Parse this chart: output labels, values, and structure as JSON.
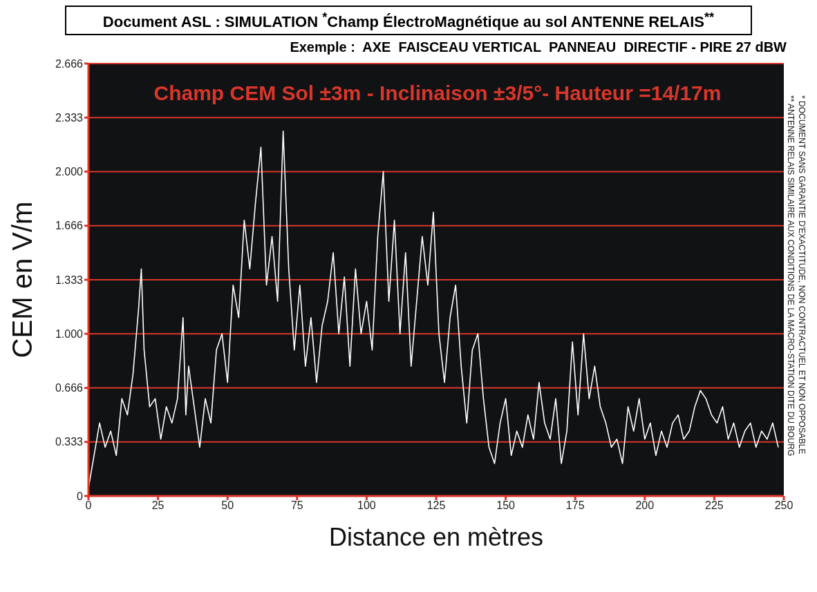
{
  "chart_data": {
    "type": "line",
    "title": "Document ASL : SIMULATION $^{*}$Champ  ÉlectroMagnétique au sol  ANTENNE RELAIS$^{**}$",
    "subtitle": "Exemple :  AXE  FAISCEAU VERTICAL  PANNEAU  DIRECTIF - PIRE 27 dBW",
    "xlabel": "Distance  en mètres",
    "ylabel": "CEM  en  V/m",
    "annotations": [
      "Champ CEM Sol ±3m - Inclinaison ±3/5°- Hauteur =14/17m",
      "*  DOCUMENT SANS GARANTIE D'EXACTITUDE, NON CONTRACTUEL ET NON OPPOSABLE",
      "** ANTENNE RELAIS SIMILAIRE AUX CONDITIONS DE LA MACRO-STATION  DITE DU BOURG"
    ],
    "x": [
      0,
      2,
      4,
      6,
      8,
      10,
      12,
      14,
      16,
      18,
      19,
      20,
      22,
      24,
      26,
      28,
      30,
      32,
      34,
      35,
      36,
      38,
      40,
      42,
      44,
      46,
      48,
      50,
      52,
      54,
      56,
      58,
      60,
      62,
      64,
      66,
      68,
      70,
      72,
      74,
      76,
      78,
      80,
      82,
      84,
      86,
      88,
      90,
      92,
      94,
      96,
      98,
      100,
      102,
      104,
      106,
      108,
      110,
      112,
      114,
      116,
      118,
      120,
      122,
      124,
      126,
      128,
      130,
      132,
      134,
      136,
      138,
      140,
      142,
      144,
      146,
      148,
      150,
      152,
      154,
      156,
      158,
      160,
      162,
      164,
      166,
      168,
      170,
      172,
      174,
      176,
      178,
      180,
      182,
      184,
      186,
      188,
      190,
      192,
      194,
      196,
      198,
      200,
      202,
      204,
      206,
      208,
      210,
      212,
      214,
      216,
      218,
      220,
      222,
      224,
      226,
      228,
      230,
      232,
      234,
      236,
      238,
      240,
      242,
      244,
      246,
      248
    ],
    "series": [
      {
        "color": "#ffffff",
        "values": [
          0.05,
          0.25,
          0.45,
          0.3,
          0.4,
          0.25,
          0.6,
          0.5,
          0.75,
          1.15,
          1.4,
          0.9,
          0.55,
          0.6,
          0.35,
          0.55,
          0.45,
          0.6,
          1.1,
          0.5,
          0.8,
          0.55,
          0.3,
          0.6,
          0.45,
          0.9,
          1.0,
          0.7,
          1.3,
          1.1,
          1.7,
          1.4,
          1.8,
          2.15,
          1.3,
          1.6,
          1.2,
          2.25,
          1.4,
          0.9,
          1.3,
          0.8,
          1.1,
          0.7,
          1.05,
          1.2,
          1.5,
          1.0,
          1.35,
          0.8,
          1.4,
          1.0,
          1.2,
          0.9,
          1.6,
          2.0,
          1.2,
          1.7,
          1.0,
          1.5,
          0.8,
          1.2,
          1.6,
          1.3,
          1.75,
          1.0,
          0.7,
          1.1,
          1.3,
          0.8,
          0.45,
          0.9,
          1.0,
          0.6,
          0.3,
          0.2,
          0.45,
          0.6,
          0.25,
          0.4,
          0.3,
          0.5,
          0.35,
          0.7,
          0.45,
          0.35,
          0.6,
          0.2,
          0.4,
          0.95,
          0.5,
          1.0,
          0.6,
          0.8,
          0.55,
          0.45,
          0.3,
          0.35,
          0.2,
          0.55,
          0.4,
          0.6,
          0.35,
          0.45,
          0.25,
          0.4,
          0.3,
          0.45,
          0.5,
          0.35,
          0.4,
          0.55,
          0.65,
          0.6,
          0.5,
          0.45,
          0.55,
          0.35,
          0.45,
          0.3,
          0.4,
          0.45,
          0.3,
          0.4,
          0.35,
          0.45,
          0.3
        ]
      }
    ],
    "xlim": [
      0,
      250
    ],
    "xticks": [
      0,
      25,
      50,
      75,
      100,
      125,
      150,
      175,
      200,
      225,
      250
    ],
    "ylim": [
      0,
      2.666
    ],
    "yticks": [
      0,
      0.333,
      0.666,
      {
        "value": 1,
        "label": "1.000"
      },
      1.333,
      1.666,
      {
        "value": 2,
        "label": "2.000"
      },
      2.333,
      2.666
    ],
    "grid": "y"
  }
}
